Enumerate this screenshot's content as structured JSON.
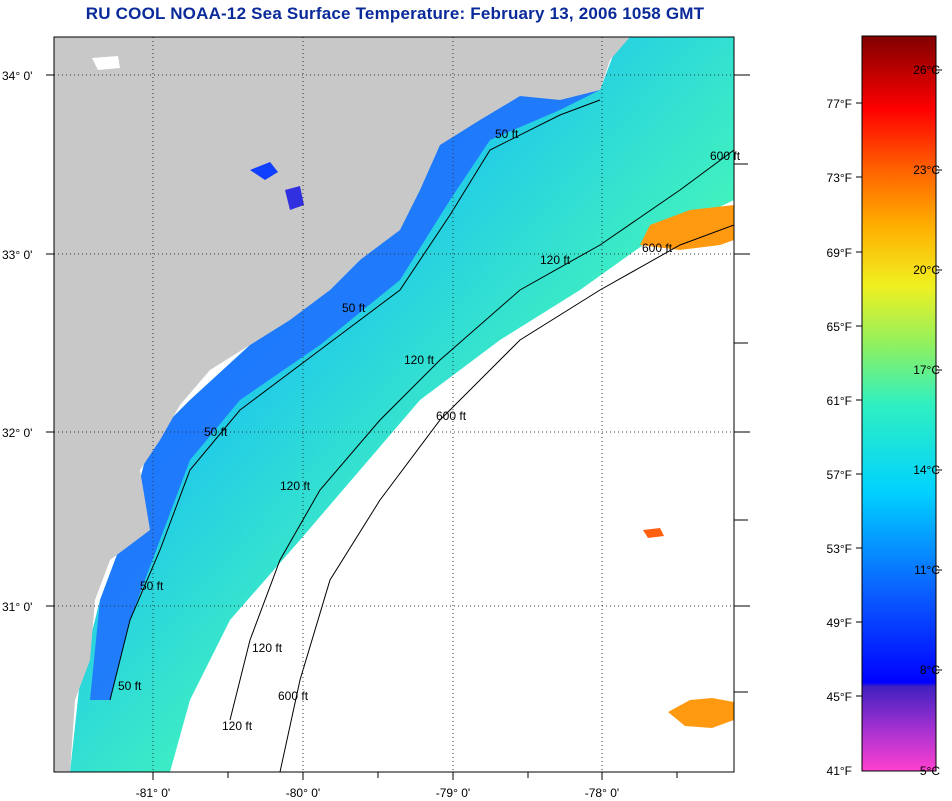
{
  "title": "RU COOL  NOAA-12  Sea Surface Temperature:  February 13, 2006 1058 GMT",
  "map": {
    "lat_labels": [
      "34° 0'",
      "33° 0'",
      "32° 0'",
      "31° 0'"
    ],
    "lon_labels": [
      "-81° 0'",
      "-80° 0'",
      "-79° 0'",
      "-78° 0'"
    ],
    "contour_labels": [
      "50 ft",
      "120 ft",
      "600 ft",
      "50 ft",
      "120 ft",
      "600 ft",
      "50 ft",
      "120 ft",
      "600 ft",
      "50 ft",
      "120 ft",
      "600 ft",
      "50 ft",
      "120 ft"
    ],
    "colors": {
      "land": "#c8c8c8",
      "nodata": "#ffffff",
      "coastal_water": "#1e6cff",
      "shelf_water": "#22c8f0",
      "mid_shelf": "#3cf0b4",
      "outer_shelf": "#c8f03c",
      "gulf_stream": "#ff8c00"
    }
  },
  "colorbar": {
    "fahrenheit": [
      "77°F",
      "73°F",
      "69°F",
      "65°F",
      "61°F",
      "57°F",
      "53°F",
      "49°F",
      "45°F",
      "41°F"
    ],
    "celsius": [
      "26°C",
      "23°C",
      "20°C",
      "17°C",
      "14°C",
      "11°C",
      "8°C",
      "5°C"
    ]
  }
}
